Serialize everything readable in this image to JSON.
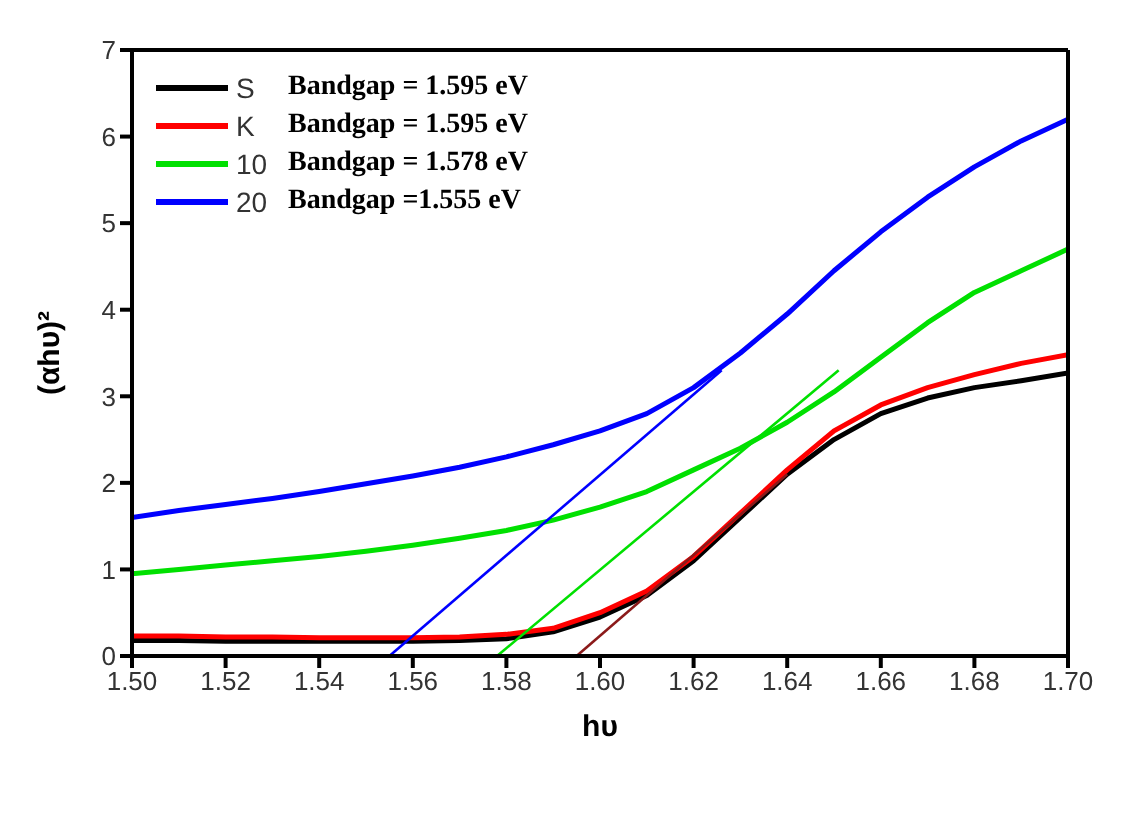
{
  "chart_data": {
    "type": "line",
    "xlabel": "hυ",
    "ylabel": "(αhυ)²",
    "xlim": [
      1.5,
      1.7
    ],
    "xticks": [
      {
        "value": 1.5,
        "label": "1.50"
      },
      {
        "value": 1.52,
        "label": "1.52"
      },
      {
        "value": 1.54,
        "label": "1.54"
      },
      {
        "value": 1.56,
        "label": "1.56"
      },
      {
        "value": 1.58,
        "label": "1.58"
      },
      {
        "value": 1.6,
        "label": "1.60"
      },
      {
        "value": 1.62,
        "label": "1.62"
      },
      {
        "value": 1.64,
        "label": "1.64"
      },
      {
        "value": 1.66,
        "label": "1.66"
      },
      {
        "value": 1.68,
        "label": "1.68"
      },
      {
        "value": 1.7,
        "label": "1.70"
      }
    ],
    "ylim": [
      0,
      7
    ],
    "yticks": [
      0,
      1,
      2,
      3,
      4,
      5,
      6,
      7
    ],
    "grid": false,
    "legend": "top left",
    "marker": "none",
    "line_style": "solid",
    "x": [
      1.5,
      1.51,
      1.52,
      1.53,
      1.54,
      1.55,
      1.56,
      1.57,
      1.58,
      1.59,
      1.6,
      1.61,
      1.62,
      1.63,
      1.64,
      1.65,
      1.66,
      1.67,
      1.68,
      1.69,
      1.7
    ],
    "series": [
      {
        "name": "S",
        "color": "#000000",
        "values": [
          0.18,
          0.18,
          0.17,
          0.17,
          0.17,
          0.17,
          0.17,
          0.18,
          0.2,
          0.28,
          0.45,
          0.7,
          1.1,
          1.6,
          2.1,
          2.5,
          2.8,
          2.98,
          3.1,
          3.18,
          3.27
        ]
      },
      {
        "name": "K",
        "color": "#ff0000",
        "values": [
          0.23,
          0.23,
          0.22,
          0.22,
          0.21,
          0.21,
          0.21,
          0.22,
          0.25,
          0.32,
          0.5,
          0.75,
          1.15,
          1.65,
          2.15,
          2.6,
          2.9,
          3.1,
          3.25,
          3.38,
          3.48
        ]
      },
      {
        "name": "10",
        "color": "#00e000",
        "values": [
          0.95,
          1.0,
          1.05,
          1.1,
          1.15,
          1.21,
          1.28,
          1.36,
          1.45,
          1.57,
          1.72,
          1.9,
          2.15,
          2.4,
          2.7,
          3.05,
          3.45,
          3.85,
          4.2,
          4.45,
          4.7
        ]
      },
      {
        "name": "20",
        "color": "#0000ff",
        "values": [
          1.6,
          1.68,
          1.75,
          1.82,
          1.9,
          1.99,
          2.08,
          2.18,
          2.3,
          2.44,
          2.6,
          2.8,
          3.1,
          3.5,
          3.95,
          4.45,
          4.9,
          5.3,
          5.65,
          5.95,
          6.2
        ]
      },
      {
        "type": "line",
        "color": "#8b1a1a",
        "x": [
          1.595,
          1.64
        ],
        "values": [
          0,
          2.1
        ]
      },
      {
        "type": "line",
        "color": "#00e000",
        "x": [
          1.578,
          1.651
        ],
        "values": [
          0,
          3.3
        ]
      },
      {
        "type": "line",
        "color": "#0000ff",
        "x": [
          1.555,
          1.626
        ],
        "values": [
          0,
          3.3
        ]
      }
    ],
    "annotations": [
      "Bandgap = 1.595 eV",
      "Bandgap = 1.595 eV",
      "Bandgap = 1.578 eV",
      "Bandgap =1.555 eV"
    ]
  }
}
